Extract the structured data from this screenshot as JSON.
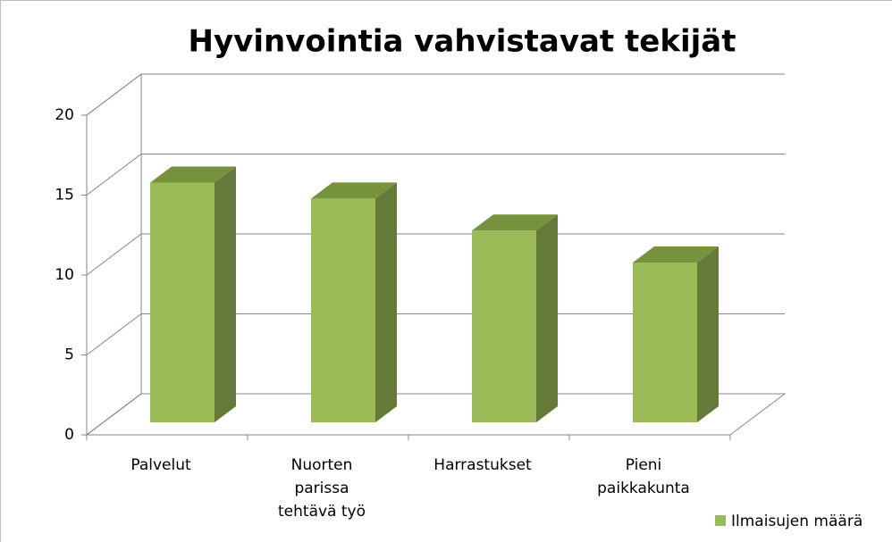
{
  "chart_data": {
    "type": "bar",
    "title": "Hyvinvointia vahvistavat tekijät",
    "categories": [
      "Palvelut",
      "Nuorten parissa tehtävä työ",
      "Harrastukset",
      "Pieni paikkakunta"
    ],
    "series": [
      {
        "name": "Ilmaisujen määrä",
        "color": "#9bbb59",
        "values": [
          15,
          14,
          12,
          10
        ]
      }
    ],
    "ylim": [
      0,
      20
    ],
    "yticks": [
      0,
      5,
      10,
      15,
      20
    ],
    "grid": true,
    "legend": "bottom-right"
  }
}
